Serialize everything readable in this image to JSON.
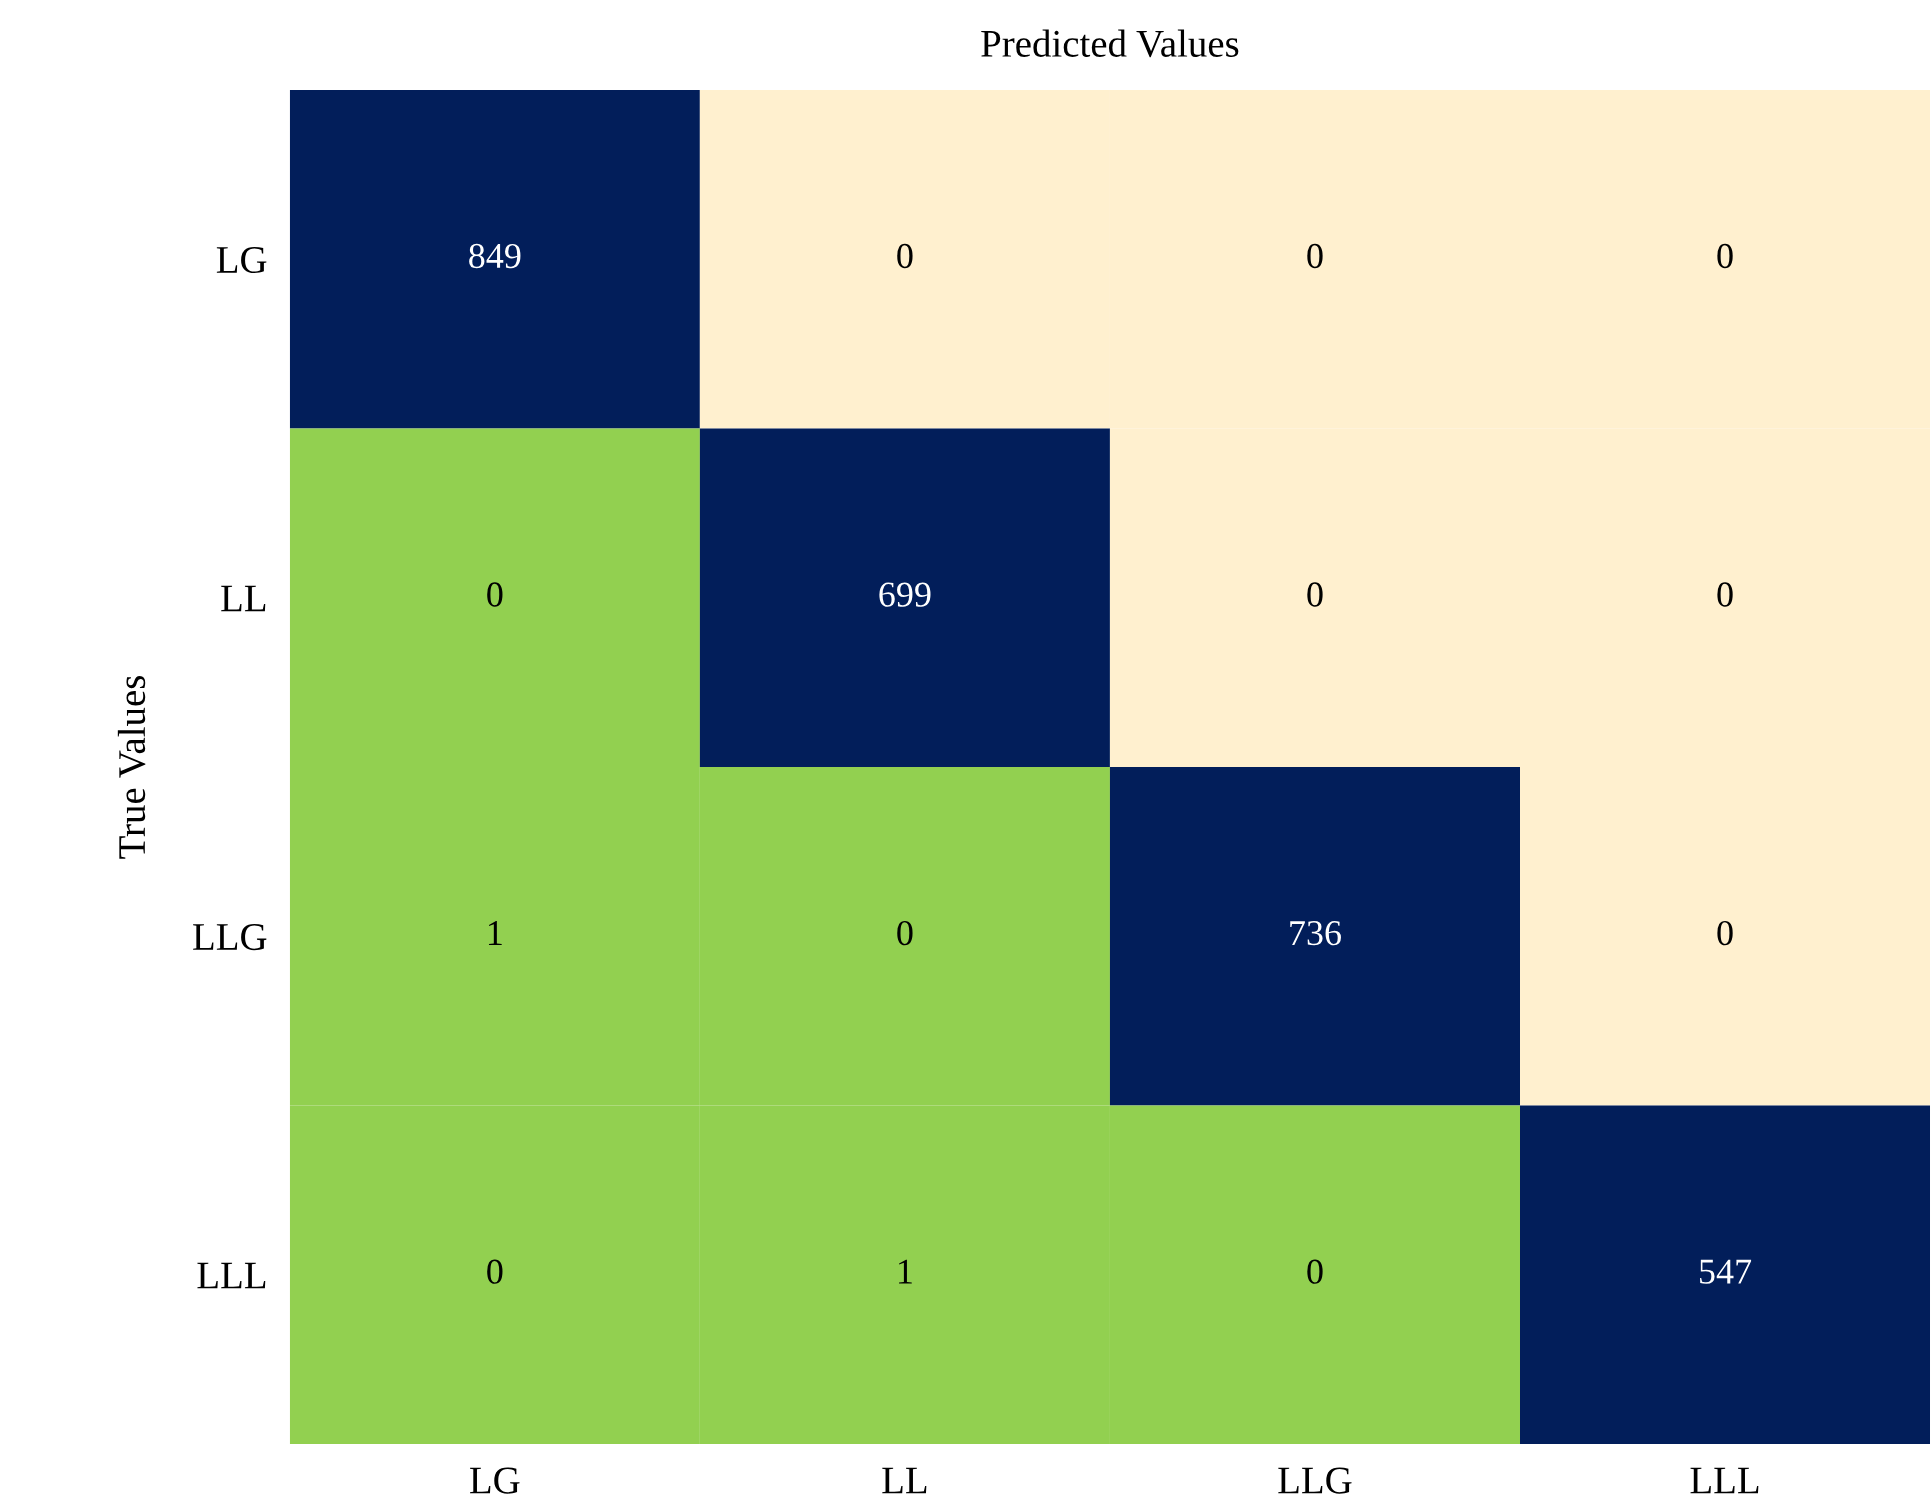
{
  "chart_data": {
    "type": "heatmap",
    "title": "Predicted Values",
    "ylabel": "True Values",
    "categories": [
      "LG",
      "LL",
      "LLG",
      "LLL"
    ],
    "y_categories": [
      "LG",
      "LL",
      "LLG",
      "LLL"
    ],
    "cells": [
      [
        849,
        0,
        0,
        0
      ],
      [
        0,
        699,
        0,
        0
      ],
      [
        1,
        0,
        736,
        0
      ],
      [
        0,
        1,
        0,
        547
      ]
    ],
    "colors": [
      "#021e5a",
      "#fff0cf",
      "#fff0cf",
      "#fff0cf",
      "#92d050",
      "#021e5a",
      "#fff0cf",
      "#fff0cf",
      "#92d050",
      "#92d050",
      "#021e5a",
      "#fff0cf",
      "#92d050",
      "#92d050",
      "#92d050",
      "#021e5a"
    ],
    "data_labels": true
  }
}
